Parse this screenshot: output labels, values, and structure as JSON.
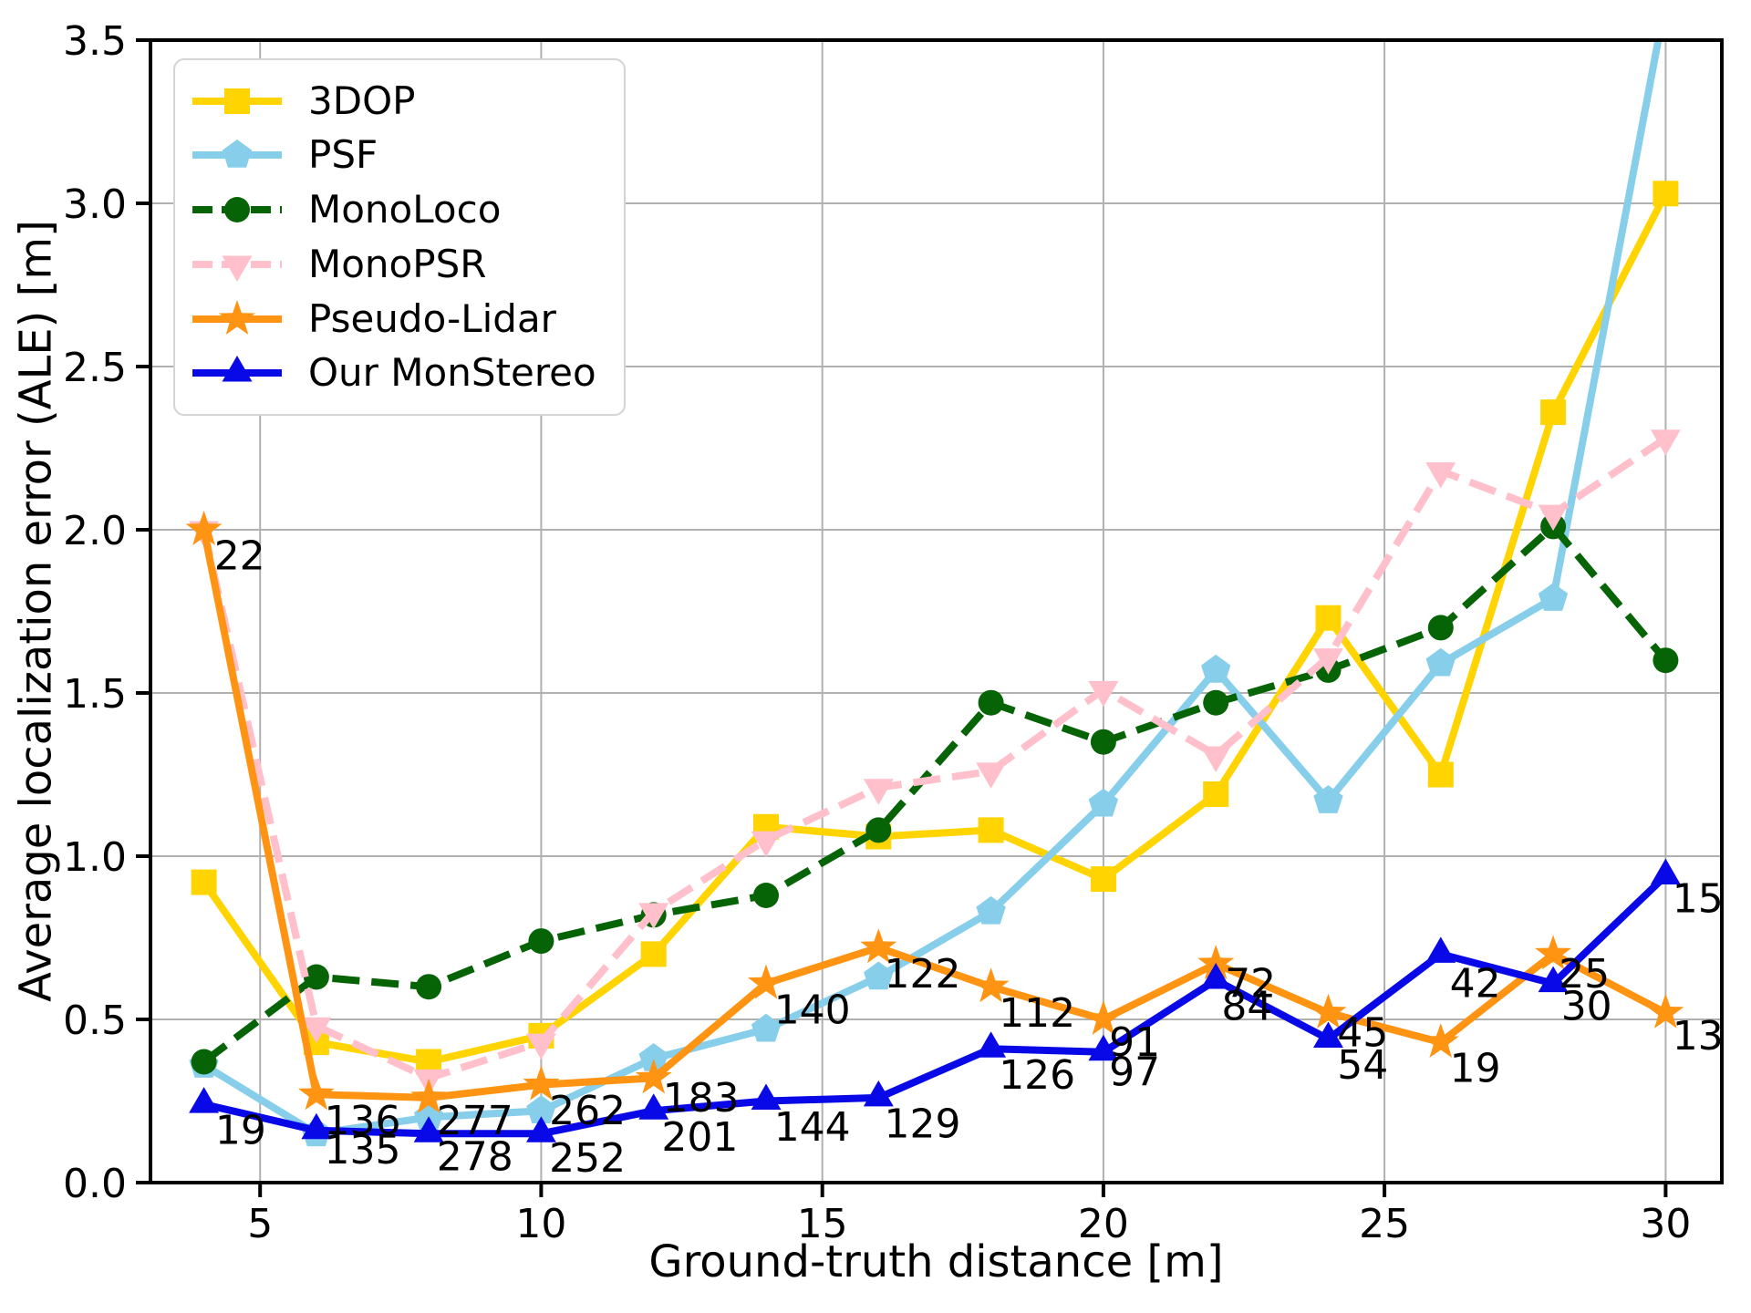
{
  "chart_data": {
    "type": "line",
    "title": "",
    "xlabel": "Ground-truth distance [m]",
    "ylabel": "Average localization error (ALE) [m]",
    "xlim": [
      3.05,
      31.0
    ],
    "ylim": [
      0,
      3.5
    ],
    "xticks": [
      5,
      10,
      15,
      20,
      25,
      30
    ],
    "yticks": [
      "0.0",
      "0.5",
      "1.0",
      "1.5",
      "2.0",
      "2.5",
      "3.0",
      "3.5"
    ],
    "grid": true,
    "legend_position": "upper-left",
    "x": [
      4,
      6,
      8,
      10,
      12,
      14,
      16,
      18,
      20,
      22,
      24,
      26,
      28,
      30
    ],
    "series": [
      {
        "name": "3DOP",
        "color": "#FFD400",
        "marker": "square",
        "line": "solid",
        "values": [
          0.92,
          0.43,
          0.37,
          0.45,
          0.7,
          1.09,
          1.06,
          1.08,
          0.93,
          1.19,
          1.73,
          1.25,
          2.36,
          3.03
        ]
      },
      {
        "name": "PSF",
        "color": "#87CEEB",
        "marker": "pentagon",
        "line": "solid",
        "values": [
          0.36,
          0.15,
          0.2,
          0.22,
          0.38,
          0.47,
          0.63,
          0.83,
          1.16,
          1.57,
          1.17,
          1.59,
          1.79,
          3.62
        ]
      },
      {
        "name": "MonoLoco",
        "color": "#066306",
        "marker": "circle",
        "line": "dashed",
        "values": [
          0.37,
          0.63,
          0.6,
          0.74,
          0.82,
          0.88,
          1.08,
          1.47,
          1.35,
          1.47,
          1.57,
          1.7,
          2.01,
          1.6
        ]
      },
      {
        "name": "MonoPSR",
        "color": "#FFC0CB",
        "marker": "triangle-down",
        "line": "dashed",
        "values": [
          2.0,
          0.48,
          0.32,
          0.43,
          0.83,
          1.05,
          1.21,
          1.26,
          1.51,
          1.31,
          1.61,
          2.18,
          2.05,
          2.28
        ]
      },
      {
        "name": "Pseudo-Lidar",
        "color": "#FF9312",
        "marker": "star",
        "line": "solid",
        "values": [
          2.0,
          0.27,
          0.26,
          0.3,
          0.32,
          0.61,
          0.72,
          0.6,
          0.5,
          0.67,
          0.52,
          0.43,
          0.7,
          0.52
        ]
      },
      {
        "name": "Our MonStereo",
        "color": "#0909E8",
        "marker": "triangle-up",
        "line": "solid",
        "values": [
          0.24,
          0.16,
          0.15,
          0.15,
          0.22,
          0.25,
          0.26,
          0.41,
          0.4,
          0.62,
          0.44,
          0.7,
          0.61,
          0.94
        ]
      }
    ],
    "annotations": [
      {
        "x": 4.18,
        "y": 1.92,
        "text": "22"
      },
      {
        "x": 4.2,
        "y": 0.16,
        "text": "19"
      },
      {
        "x": 6.14,
        "y": 0.19,
        "text": "136"
      },
      {
        "x": 6.14,
        "y": 0.1,
        "text": "135"
      },
      {
        "x": 8.14,
        "y": 0.19,
        "text": "277"
      },
      {
        "x": 8.14,
        "y": 0.08,
        "text": "278"
      },
      {
        "x": 10.14,
        "y": 0.22,
        "text": "262"
      },
      {
        "x": 10.14,
        "y": 0.075,
        "text": "252"
      },
      {
        "x": 12.16,
        "y": 0.26,
        "text": "183"
      },
      {
        "x": 12.14,
        "y": 0.14,
        "text": "201"
      },
      {
        "x": 14.14,
        "y": 0.53,
        "text": "140"
      },
      {
        "x": 14.14,
        "y": 0.17,
        "text": "144"
      },
      {
        "x": 16.1,
        "y": 0.64,
        "text": "122"
      },
      {
        "x": 16.1,
        "y": 0.18,
        "text": "129"
      },
      {
        "x": 18.14,
        "y": 0.52,
        "text": "112"
      },
      {
        "x": 18.14,
        "y": 0.33,
        "text": "126"
      },
      {
        "x": 20.1,
        "y": 0.43,
        "text": "91"
      },
      {
        "x": 20.1,
        "y": 0.34,
        "text": "97"
      },
      {
        "x": 22.16,
        "y": 0.61,
        "text": "72"
      },
      {
        "x": 22.1,
        "y": 0.54,
        "text": "84"
      },
      {
        "x": 24.16,
        "y": 0.46,
        "text": "45"
      },
      {
        "x": 24.16,
        "y": 0.36,
        "text": "54"
      },
      {
        "x": 26.16,
        "y": 0.61,
        "text": "42"
      },
      {
        "x": 26.16,
        "y": 0.35,
        "text": "19"
      },
      {
        "x": 28.1,
        "y": 0.64,
        "text": "25"
      },
      {
        "x": 28.14,
        "y": 0.54,
        "text": "30"
      },
      {
        "x": 30.12,
        "y": 0.87,
        "text": "15"
      },
      {
        "x": 30.12,
        "y": 0.45,
        "text": "13"
      }
    ],
    "colors": {
      "grid": "#b0b0b0",
      "axis": "#000000",
      "text": "#000000",
      "background": "#ffffff",
      "legend_border": "#d4d4d4"
    }
  }
}
